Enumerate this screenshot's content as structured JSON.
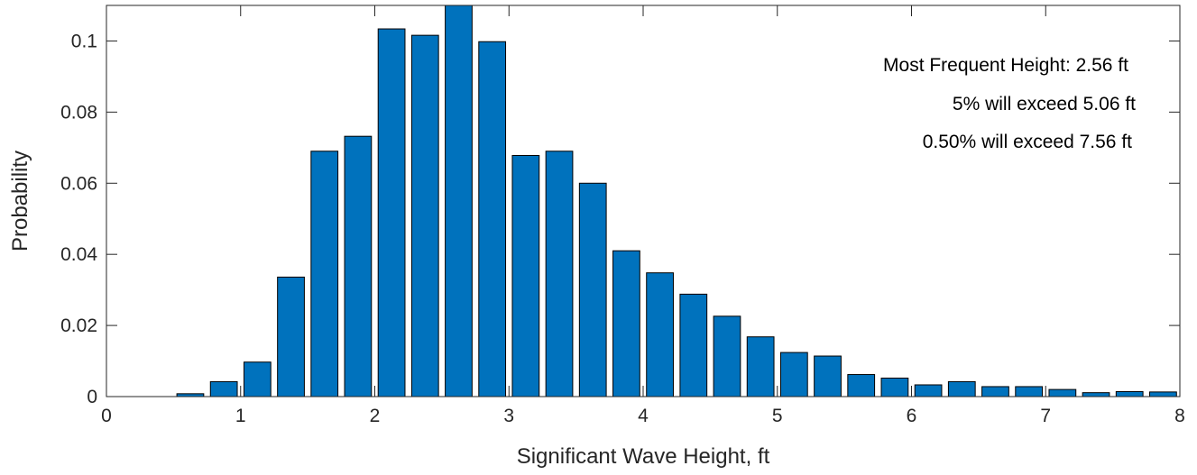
{
  "chart_data": {
    "type": "bar",
    "xlabel": "Significant Wave Height, ft",
    "ylabel": "Probability",
    "xlim": [
      0,
      8
    ],
    "ylim": [
      0,
      0.11
    ],
    "xticks": [
      0,
      1,
      2,
      3,
      4,
      5,
      6,
      7,
      8
    ],
    "xtick_labels": [
      "0",
      "1",
      "2",
      "3",
      "4",
      "5",
      "6",
      "7",
      "8"
    ],
    "yticks": [
      0,
      0.02,
      0.04,
      0.06,
      0.08,
      0.1
    ],
    "ytick_labels": [
      "0",
      "0.02",
      "0.04",
      "0.06",
      "0.08",
      "0.1"
    ],
    "grid": false,
    "box": true,
    "bin_width": 0.25,
    "x": [
      0.125,
      0.375,
      0.625,
      0.875,
      1.125,
      1.375,
      1.625,
      1.875,
      2.125,
      2.375,
      2.625,
      2.875,
      3.125,
      3.375,
      3.625,
      3.875,
      4.125,
      4.375,
      4.625,
      4.875,
      5.125,
      5.375,
      5.625,
      5.875,
      6.125,
      6.375,
      6.625,
      6.875,
      7.125,
      7.375,
      7.625,
      7.875
    ],
    "values": [
      0.0,
      0.0,
      0.0008,
      0.0042,
      0.0097,
      0.0336,
      0.069,
      0.0732,
      0.1034,
      0.1016,
      0.111,
      0.0998,
      0.0678,
      0.069,
      0.06,
      0.041,
      0.0348,
      0.0288,
      0.0226,
      0.0168,
      0.0124,
      0.0114,
      0.0062,
      0.0052,
      0.0033,
      0.0042,
      0.0028,
      0.0028,
      0.002,
      0.0011,
      0.0014,
      0.0013
    ],
    "bar_color": "#0072BD",
    "edge_color": "#000000",
    "annotations": [
      "Most Frequent Height: 2.56 ft",
      "5% will exceed 5.06 ft",
      "0.50% will exceed 7.56 ft"
    ]
  }
}
